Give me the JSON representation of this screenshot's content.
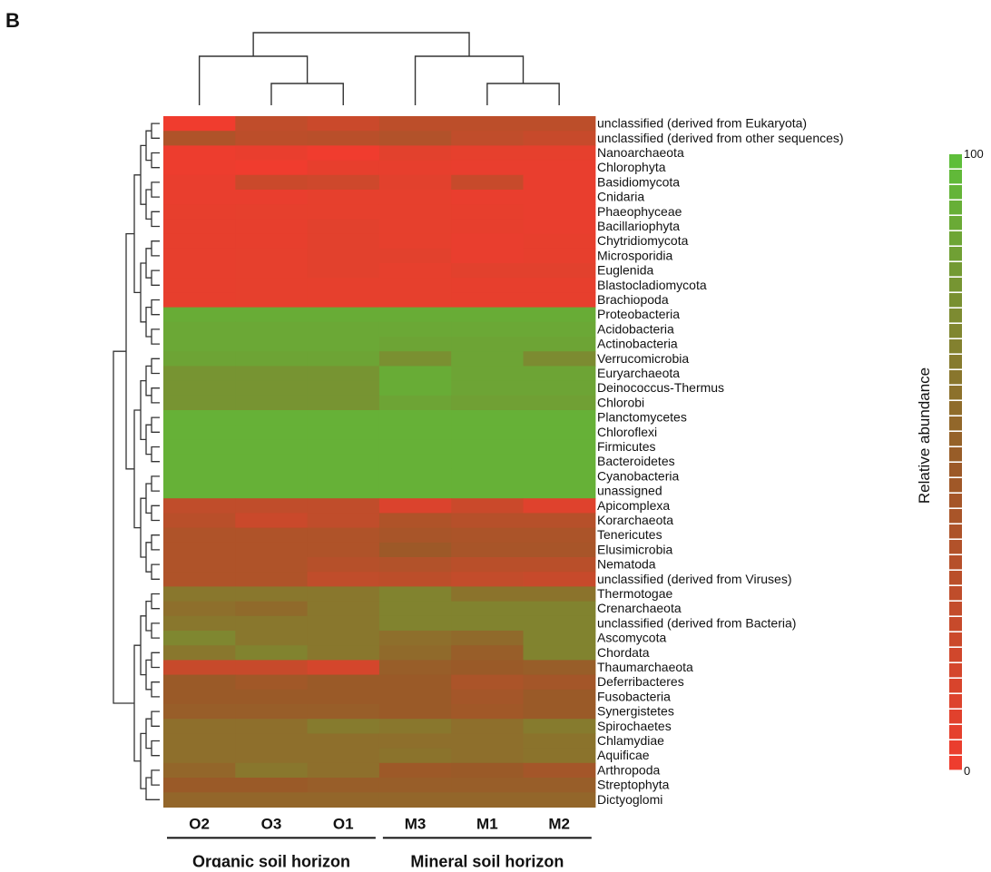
{
  "panel_label": "B",
  "chart_data": {
    "type": "heatmap",
    "columns": [
      "O2",
      "O3",
      "O1",
      "M3",
      "M1",
      "M2"
    ],
    "rows": [
      "unclassified (derived from Eukaryota)",
      "unclassified (derived from other sequences)",
      "Nanoarchaeota",
      "Chlorophyta",
      "Basidiomycota",
      "Cnidaria",
      "Phaeophyceae",
      "Bacillariophyta",
      "Chytridiomycota",
      "Microsporidia",
      "Euglenida",
      "Blastocladiomycota",
      "Brachiopoda",
      "Proteobacteria",
      "Acidobacteria",
      "Actinobacteria",
      "Verrucomicrobia",
      "Euryarchaeota",
      "Deinococcus-Thermus",
      "Chlorobi",
      "Planctomycetes",
      "Chloroflexi",
      "Firmicutes",
      "Bacteroidetes",
      "Cyanobacteria",
      "unassigned",
      "Apicomplexa",
      "Korarchaeota",
      "Tenericutes",
      "Elusimicrobia",
      "Nematoda",
      "unclassified (derived from Viruses)",
      "Thermotogae",
      "Crenarchaeota",
      "unclassified (derived from Bacteria)",
      "Ascomycota",
      "Chordata",
      "Thaumarchaeota",
      "Deferribacteres",
      "Fusobacteria",
      "Synergistetes",
      "Spirochaetes",
      "Chlamydiae",
      "Aquificae",
      "Arthropoda",
      "Streptophyta",
      "Dictyoglomi"
    ],
    "values": [
      [
        0,
        28,
        22,
        30,
        30,
        30
      ],
      [
        38,
        30,
        32,
        36,
        28,
        24
      ],
      [
        2,
        4,
        0,
        8,
        6,
        6
      ],
      [
        2,
        0,
        5,
        5,
        4,
        4
      ],
      [
        4,
        22,
        20,
        8,
        24,
        4
      ],
      [
        4,
        4,
        6,
        6,
        4,
        4
      ],
      [
        5,
        6,
        6,
        6,
        5,
        4
      ],
      [
        5,
        5,
        8,
        6,
        5,
        4
      ],
      [
        5,
        5,
        8,
        6,
        4,
        5
      ],
      [
        5,
        6,
        8,
        8,
        4,
        5
      ],
      [
        5,
        6,
        8,
        6,
        8,
        8
      ],
      [
        5,
        6,
        6,
        6,
        5,
        5
      ],
      [
        5,
        6,
        6,
        6,
        5,
        5
      ],
      [
        90,
        90,
        90,
        90,
        90,
        90
      ],
      [
        88,
        88,
        88,
        88,
        88,
        88
      ],
      [
        88,
        88,
        88,
        86,
        86,
        86
      ],
      [
        86,
        86,
        86,
        76,
        86,
        74
      ],
      [
        78,
        78,
        78,
        90,
        86,
        86
      ],
      [
        78,
        78,
        78,
        90,
        86,
        86
      ],
      [
        78,
        78,
        78,
        86,
        84,
        84
      ],
      [
        92,
        92,
        92,
        92,
        92,
        92
      ],
      [
        92,
        92,
        92,
        92,
        92,
        92
      ],
      [
        92,
        92,
        92,
        92,
        92,
        92
      ],
      [
        92,
        92,
        92,
        92,
        92,
        92
      ],
      [
        92,
        92,
        92,
        92,
        92,
        92
      ],
      [
        92,
        92,
        92,
        92,
        92,
        92
      ],
      [
        28,
        28,
        28,
        12,
        22,
        10
      ],
      [
        32,
        22,
        28,
        38,
        34,
        34
      ],
      [
        38,
        38,
        38,
        42,
        40,
        40
      ],
      [
        38,
        38,
        38,
        48,
        42,
        42
      ],
      [
        38,
        38,
        34,
        36,
        32,
        32
      ],
      [
        38,
        38,
        28,
        30,
        26,
        24
      ],
      [
        64,
        64,
        64,
        70,
        62,
        62
      ],
      [
        60,
        58,
        64,
        70,
        70,
        70
      ],
      [
        64,
        64,
        64,
        70,
        70,
        70
      ],
      [
        72,
        64,
        64,
        60,
        58,
        70
      ],
      [
        64,
        70,
        64,
        58,
        52,
        70
      ],
      [
        24,
        24,
        16,
        52,
        50,
        52
      ],
      [
        50,
        46,
        50,
        50,
        40,
        44
      ],
      [
        50,
        50,
        50,
        50,
        44,
        50
      ],
      [
        52,
        52,
        52,
        50,
        46,
        50
      ],
      [
        60,
        60,
        66,
        64,
        60,
        66
      ],
      [
        60,
        60,
        60,
        60,
        60,
        62
      ],
      [
        60,
        60,
        60,
        62,
        60,
        62
      ],
      [
        56,
        64,
        60,
        48,
        50,
        44
      ],
      [
        50,
        50,
        52,
        52,
        52,
        52
      ],
      [
        56,
        56,
        56,
        56,
        56,
        56
      ]
    ],
    "column_groups": [
      {
        "label": "Organic soil horizon",
        "columns": [
          "O2",
          "O3",
          "O1"
        ]
      },
      {
        "label": "Mineral soil horizon",
        "columns": [
          "M3",
          "M1",
          "M2"
        ]
      }
    ],
    "color_scale": {
      "min": 0,
      "max": 100,
      "min_label": "0",
      "max_label": "100",
      "low_color": "#f03c2e",
      "mid_color": "#9a5a28",
      "high_color": "#5cc13a",
      "label": "Relative abundance"
    }
  }
}
